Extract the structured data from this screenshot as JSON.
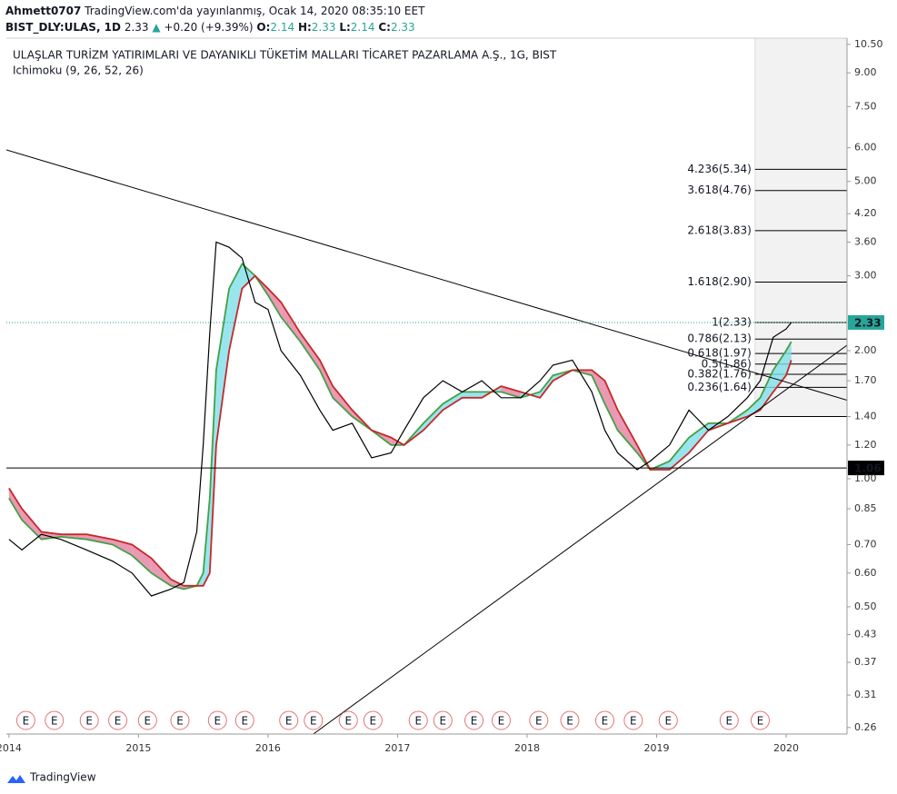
{
  "header": {
    "author": "Ahmett0707",
    "published": "TradingView.com'da yayınlanmış, Ocak 14, 2020 08:35:10 EET",
    "symbol": "BIST_DLY:ULAS, 1D",
    "last": "2.33",
    "change": "+0.20 (+9.39%)",
    "open_label": "O:",
    "open": "2.14",
    "high_label": "H:",
    "high": "2.33",
    "low_label": "L:",
    "low": "2.14",
    "close_label": "C:",
    "close": "2.33"
  },
  "chart_data": {
    "type": "line",
    "title": "ULAŞLAR TURİZM YATIRIMLARI VE DAYANIKLI TÜKETİM MALLARI TİCARET PAZARLAMA A.Ş., 1G, BIST",
    "subtitle": "Ichimoku (9, 26, 52, 26)",
    "log_scale": true,
    "grid": false,
    "xlim": [
      2013.98,
      2020.47
    ],
    "xticks": [
      2014,
      2015,
      2016,
      2017,
      2018,
      2019,
      2020
    ],
    "ylim": [
      0.251,
      10.86
    ],
    "yticks": [
      {
        "value": 10.5,
        "label": "10.50"
      },
      {
        "value": 9,
        "label": "9.00"
      },
      {
        "value": 7.5,
        "label": "7.50"
      },
      {
        "value": 6,
        "label": "6.00"
      },
      {
        "value": 5,
        "label": "5.00"
      },
      {
        "value": 4.2,
        "label": "4.20"
      },
      {
        "value": 3.6,
        "label": "3.60"
      },
      {
        "value": 3,
        "label": "3.00"
      },
      {
        "value": 2,
        "label": "2.00"
      },
      {
        "value": 1.7,
        "label": "1.70"
      },
      {
        "value": 1.4,
        "label": "1.40"
      },
      {
        "value": 1.2,
        "label": "1.20"
      },
      {
        "value": 1,
        "label": "1.00"
      },
      0.85,
      {
        "value": 0.7,
        "label": "0.70"
      },
      {
        "value": 0.6,
        "label": "0.60"
      },
      {
        "value": 0.5,
        "label": "0.50"
      },
      0.43,
      0.37,
      0.31,
      0.26
    ],
    "x": [
      2014.0,
      2014.1,
      2014.25,
      2014.4,
      2014.6,
      2014.8,
      2014.95,
      2015.1,
      2015.25,
      2015.35,
      2015.45,
      2015.5,
      2015.55,
      2015.6,
      2015.7,
      2015.8,
      2015.9,
      2016.0,
      2016.1,
      2016.25,
      2016.4,
      2016.5,
      2016.65,
      2016.8,
      2016.95,
      2017.05,
      2017.2,
      2017.35,
      2017.5,
      2017.65,
      2017.8,
      2017.95,
      2018.1,
      2018.2,
      2018.35,
      2018.5,
      2018.6,
      2018.7,
      2018.85,
      2018.95,
      2019.1,
      2019.25,
      2019.4,
      2019.55,
      2019.7,
      2019.8,
      2019.9,
      2020.0,
      2020.04
    ],
    "series": [
      {
        "color": "#000000",
        "values": [
          0.72,
          0.68,
          0.74,
          0.72,
          0.68,
          0.64,
          0.6,
          0.53,
          0.55,
          0.57,
          0.75,
          1.2,
          2.2,
          3.6,
          3.5,
          3.3,
          2.6,
          2.5,
          2.0,
          1.75,
          1.45,
          1.3,
          1.35,
          1.12,
          1.15,
          1.3,
          1.55,
          1.7,
          1.6,
          1.7,
          1.55,
          1.55,
          1.7,
          1.85,
          1.9,
          1.6,
          1.3,
          1.15,
          1.05,
          1.1,
          1.2,
          1.45,
          1.3,
          1.4,
          1.55,
          1.7,
          2.15,
          2.25,
          2.33
        ]
      },
      {
        "color": "#43a047",
        "values": [
          0.9,
          0.8,
          0.72,
          0.73,
          0.72,
          0.7,
          0.66,
          0.6,
          0.56,
          0.55,
          0.56,
          0.6,
          0.9,
          1.8,
          2.8,
          3.2,
          3.0,
          2.7,
          2.4,
          2.1,
          1.8,
          1.55,
          1.4,
          1.3,
          1.2,
          1.2,
          1.35,
          1.5,
          1.6,
          1.6,
          1.6,
          1.55,
          1.6,
          1.75,
          1.8,
          1.75,
          1.5,
          1.3,
          1.15,
          1.05,
          1.1,
          1.25,
          1.35,
          1.35,
          1.45,
          1.55,
          1.8,
          2.0,
          2.1
        ]
      },
      {
        "color": "#c62828",
        "values": [
          0.95,
          0.85,
          0.75,
          0.74,
          0.74,
          0.72,
          0.7,
          0.65,
          0.58,
          0.56,
          0.56,
          0.56,
          0.6,
          1.2,
          2.0,
          2.8,
          3.0,
          2.8,
          2.6,
          2.2,
          1.9,
          1.65,
          1.45,
          1.3,
          1.25,
          1.2,
          1.3,
          1.45,
          1.55,
          1.55,
          1.65,
          1.6,
          1.55,
          1.7,
          1.8,
          1.8,
          1.7,
          1.45,
          1.2,
          1.05,
          1.05,
          1.15,
          1.3,
          1.35,
          1.4,
          1.45,
          1.6,
          1.75,
          1.9
        ]
      }
    ],
    "cloud_colors": {
      "up": "#80deea",
      "down": "#e57fa3"
    },
    "trendlines": [
      {
        "x": [
          2013.98,
          2020.47
        ],
        "y": [
          5.93,
          1.53
        ]
      },
      {
        "x": [
          2016.35,
          2020.47
        ],
        "y": [
          0.251,
          2.06
        ]
      }
    ],
    "hlines": [
      {
        "value": 1.06,
        "label": "1.06",
        "color": "#000000"
      },
      {
        "value": 2.33,
        "label": "2.33",
        "color": "#26a69a"
      }
    ],
    "fib_start": 2019.76,
    "fib_base": 1.4,
    "fib_levels": [
      {
        "value": 5.34,
        "label": "4.236(5.34)"
      },
      {
        "value": 4.76,
        "label": "3.618(4.76)"
      },
      {
        "value": 3.83,
        "label": "2.618(3.83)"
      },
      {
        "value": 2.9,
        "label": "1.618(2.90)"
      },
      {
        "value": 2.33,
        "label": "1(2.33)"
      },
      {
        "value": 2.13,
        "label": "0.786(2.13)"
      },
      {
        "value": 1.97,
        "label": "0.618(1.97)"
      },
      {
        "value": 1.86,
        "label": "0.5(1.86)"
      },
      {
        "value": 1.76,
        "label": "0.382(1.76)"
      },
      {
        "value": 1.64,
        "label": "0.236(1.64)"
      }
    ],
    "events": {
      "label": "E",
      "x": [
        2014.13,
        2014.35,
        2014.62,
        2014.84,
        2015.07,
        2015.32,
        2015.61,
        2015.82,
        2016.16,
        2016.35,
        2016.62,
        2016.81,
        2017.16,
        2017.35,
        2017.59,
        2017.8,
        2018.09,
        2018.33,
        2018.6,
        2018.82,
        2019.09,
        2019.56,
        2019.8
      ]
    }
  },
  "footer": {
    "brand": "TradingView"
  }
}
